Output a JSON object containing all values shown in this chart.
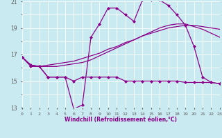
{
  "xlabel": "Windchill (Refroidissement éolien,°C)",
  "background_color": "#c8eaf0",
  "line_color": "#8b008b",
  "grid_color": "#ffffff",
  "xmin": 0,
  "xmax": 23,
  "ymin": 13,
  "ymax": 21,
  "yticks": [
    13,
    15,
    17,
    19,
    21
  ],
  "xticks": [
    0,
    1,
    2,
    3,
    4,
    5,
    6,
    7,
    8,
    9,
    10,
    11,
    12,
    13,
    14,
    15,
    16,
    17,
    18,
    19,
    20,
    21,
    22,
    23
  ],
  "series1_x": [
    0,
    1,
    2,
    3,
    4,
    5,
    6,
    7,
    8,
    9,
    10,
    11,
    12,
    13,
    14,
    15,
    16,
    17,
    18,
    19,
    20,
    21,
    22,
    23
  ],
  "series1_y": [
    16.8,
    16.2,
    16.1,
    15.3,
    15.3,
    15.3,
    12.9,
    13.2,
    18.3,
    19.3,
    20.5,
    20.5,
    20.0,
    19.5,
    21.1,
    21.1,
    21.1,
    20.7,
    20.0,
    19.2,
    17.6,
    15.3,
    14.9,
    14.8
  ],
  "series2_x": [
    0,
    1,
    2,
    3,
    4,
    5,
    6,
    7,
    8,
    9,
    10,
    11,
    12,
    13,
    14,
    15,
    16,
    17,
    18,
    19,
    20,
    21,
    22,
    23
  ],
  "series2_y": [
    16.8,
    16.1,
    16.1,
    15.3,
    15.3,
    15.3,
    15.0,
    15.3,
    15.3,
    15.3,
    15.3,
    15.3,
    15.0,
    15.0,
    15.0,
    15.0,
    15.0,
    15.0,
    15.0,
    14.9,
    14.9,
    14.9,
    14.9,
    14.8
  ],
  "series3_x": [
    0,
    1,
    2,
    3,
    4,
    5,
    6,
    7,
    8,
    9,
    10,
    11,
    12,
    13,
    14,
    15,
    16,
    17,
    18,
    19,
    20,
    21,
    22,
    23
  ],
  "series3_y": [
    16.8,
    16.2,
    16.1,
    16.2,
    16.3,
    16.4,
    16.5,
    16.7,
    16.9,
    17.1,
    17.4,
    17.6,
    17.9,
    18.1,
    18.4,
    18.6,
    18.8,
    19.0,
    19.1,
    19.2,
    19.2,
    19.1,
    19.0,
    18.9
  ],
  "series4_x": [
    0,
    1,
    2,
    3,
    4,
    5,
    6,
    7,
    8,
    9,
    10,
    11,
    12,
    13,
    14,
    15,
    16,
    17,
    18,
    19,
    20,
    21,
    22,
    23
  ],
  "series4_y": [
    16.8,
    16.2,
    16.1,
    16.1,
    16.1,
    16.2,
    16.3,
    16.4,
    16.6,
    16.9,
    17.2,
    17.5,
    17.8,
    18.1,
    18.4,
    18.7,
    19.0,
    19.2,
    19.3,
    19.3,
    19.1,
    18.9,
    18.6,
    18.3
  ]
}
